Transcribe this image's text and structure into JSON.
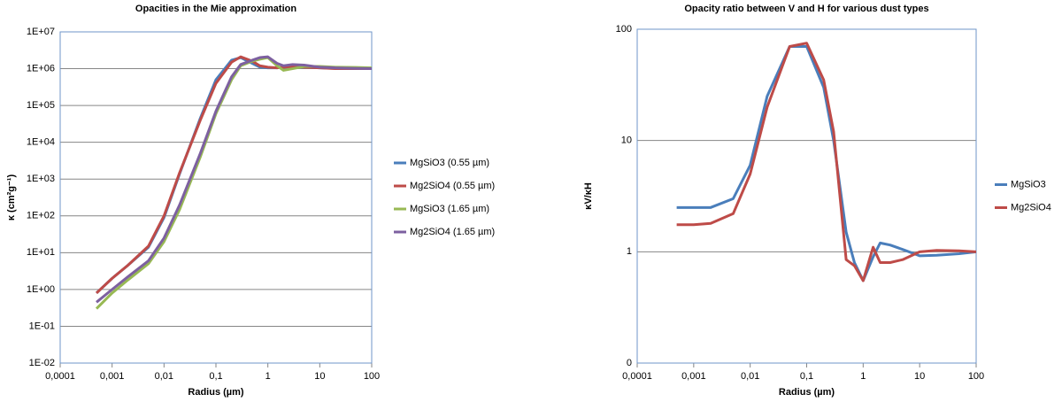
{
  "chart_data": [
    {
      "type": "line",
      "title": "Opacities in the Mie approximation",
      "x_label": "Radius (µm)",
      "y_label": "κ (cm²g⁻¹)",
      "x_log": true,
      "y_log": true,
      "grid": true,
      "legend": "right",
      "xlim": [
        0.0001,
        100
      ],
      "xticks": [
        {
          "value": 0.0001,
          "label": "0,0001"
        },
        {
          "value": 0.001,
          "label": "0,001"
        },
        {
          "value": 0.01,
          "label": "0,01"
        },
        {
          "value": 0.1,
          "label": "0,1"
        },
        1,
        10,
        100
      ],
      "ylim": [
        0.01,
        10000000
      ],
      "yticks": [
        {
          "value": 0.01,
          "label": "1E-02"
        },
        {
          "value": 0.1,
          "label": "1E-01"
        },
        {
          "value": 1,
          "label": "1E+00"
        },
        {
          "value": 10,
          "label": "1E+01"
        },
        {
          "value": 100,
          "label": "1E+02"
        },
        {
          "value": 1000,
          "label": "1E+03"
        },
        {
          "value": 10000,
          "label": "1E+04"
        },
        {
          "value": 100000,
          "label": "1E+05"
        },
        {
          "value": 1000000,
          "label": "1E+06"
        },
        {
          "value": 10000000,
          "label": "1E+07"
        }
      ],
      "x": [
        0.0005,
        0.001,
        0.002,
        0.005,
        0.01,
        0.02,
        0.05,
        0.1,
        0.2,
        0.3,
        0.5,
        0.7,
        1,
        1.5,
        2,
        3,
        5,
        10,
        20,
        50,
        100
      ],
      "series": [
        {
          "name": "MgSiO3 (0.55 µm)",
          "color": "#4a7ebb",
          "values": [
            0.8,
            2,
            4.5,
            14,
            90,
            1400,
            45000,
            500000,
            1700000,
            2000000,
            1400000,
            1100000,
            1050000,
            1050000,
            1100000,
            1120000,
            1100000,
            1050000,
            1020000,
            1000000,
            1000000
          ]
        },
        {
          "name": "Mg2SiO4 (0.55 µm)",
          "color": "#be4b48",
          "values": [
            0.8,
            2,
            4.5,
            15,
            100,
            1500,
            40000,
            400000,
            1500000,
            2100000,
            1600000,
            1200000,
            1100000,
            1050000,
            1100000,
            1150000,
            1100000,
            1050000,
            1000000,
            1000000,
            1000000
          ]
        },
        {
          "name": "MgSiO3 (1.65 µm)",
          "color": "#98b954",
          "values": [
            0.3,
            0.8,
            1.8,
            5,
            20,
            150,
            4000,
            60000,
            500000,
            1200000,
            1600000,
            1800000,
            2000000,
            1200000,
            900000,
            1000000,
            1150000,
            1150000,
            1100000,
            1080000,
            1050000
          ]
        },
        {
          "name": "Mg2SiO4 (1.65 µm)",
          "color": "#7d60a0",
          "values": [
            0.45,
            1,
            2.2,
            6,
            25,
            200,
            5000,
            70000,
            600000,
            1300000,
            1700000,
            2000000,
            2100000,
            1400000,
            1200000,
            1300000,
            1250000,
            1100000,
            1050000,
            1020000,
            1000000
          ]
        }
      ]
    },
    {
      "type": "line",
      "title": "Opacity ratio between V and H for various dust types",
      "x_label": "Radius (µm)",
      "y_label": "κV/κH",
      "x_log": true,
      "y_log": true,
      "grid": true,
      "legend": "right",
      "xlim": [
        0.0001,
        100
      ],
      "xticks": [
        {
          "value": 0.0001,
          "label": "0,0001"
        },
        {
          "value": 0.001,
          "label": "0,001"
        },
        {
          "value": 0.01,
          "label": "0,01"
        },
        {
          "value": 0.1,
          "label": "0,1"
        },
        1,
        10,
        100
      ],
      "ylim": [
        0.1,
        100
      ],
      "yticks": [
        {
          "value": 0.1,
          "label": "0"
        },
        1,
        10,
        100
      ],
      "x": [
        0.0005,
        0.001,
        0.002,
        0.005,
        0.01,
        0.02,
        0.05,
        0.1,
        0.2,
        0.3,
        0.5,
        0.7,
        1,
        1.5,
        2,
        3,
        5,
        10,
        20,
        50,
        100
      ],
      "series": [
        {
          "name": "MgSiO3",
          "color": "#4a7ebb",
          "values": [
            2.5,
            2.5,
            2.5,
            3,
            6,
            25,
            70,
            70,
            30,
            10,
            1.5,
            0.8,
            0.55,
            0.9,
            1.2,
            1.15,
            1.05,
            0.92,
            0.93,
            0.96,
            1
          ]
        },
        {
          "name": "Mg2SiO4",
          "color": "#be4b48",
          "values": [
            1.75,
            1.75,
            1.8,
            2.2,
            5,
            20,
            70,
            75,
            35,
            12,
            0.85,
            0.75,
            0.55,
            1.1,
            0.8,
            0.8,
            0.85,
            1,
            1.03,
            1.02,
            1
          ]
        }
      ]
    }
  ]
}
